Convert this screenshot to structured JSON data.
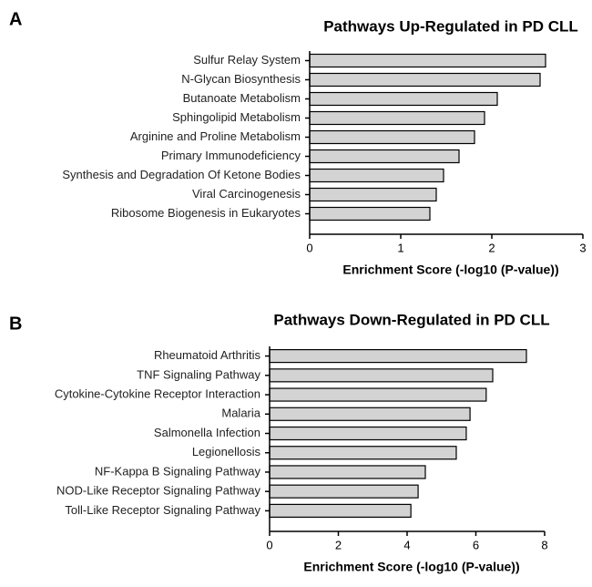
{
  "chart_data": [
    {
      "type": "barh",
      "panel": "A",
      "title": "Pathways Up-Regulated in  PD CLL",
      "categories": [
        "Sulfur Relay System",
        "N-Glycan Biosynthesis",
        "Butanoate Metabolism",
        "Sphingolipid Metabolism",
        "Arginine and Proline Metabolism",
        "Primary Immunodeficiency",
        "Synthesis and Degradation Of Ketone Bodies",
        "Viral Carcinogenesis",
        "Ribosome Biogenesis in Eukaryotes"
      ],
      "values": [
        2.59,
        2.53,
        2.06,
        1.92,
        1.81,
        1.64,
        1.47,
        1.39,
        1.32
      ],
      "color": "#d3d3d3",
      "xlabel": "Enrichment Score (-log10 (P-value))",
      "xlim": [
        0,
        3
      ],
      "xticks": [
        0,
        1,
        2,
        3
      ]
    },
    {
      "type": "barh",
      "panel": "B",
      "title": "Pathways Down-Regulated in  PD CLL",
      "categories": [
        "Rheumatoid Arthritis",
        "TNF Signaling Pathway",
        "Cytokine-Cytokine Receptor Interaction",
        "Malaria",
        "Salmonella Infection",
        "Legionellosis",
        "NF-Kappa B Signaling Pathway",
        "NOD-Like Receptor Signaling Pathway",
        "Toll-Like Receptor Signaling Pathway"
      ],
      "values": [
        7.47,
        6.49,
        6.3,
        5.83,
        5.72,
        5.43,
        4.53,
        4.32,
        4.11
      ],
      "color": "#d3d3d3",
      "xlabel": "Enrichment Score (-log10 (P-value))",
      "xlim": [
        0,
        8
      ],
      "xticks": [
        0,
        2,
        4,
        6,
        8
      ]
    }
  ]
}
